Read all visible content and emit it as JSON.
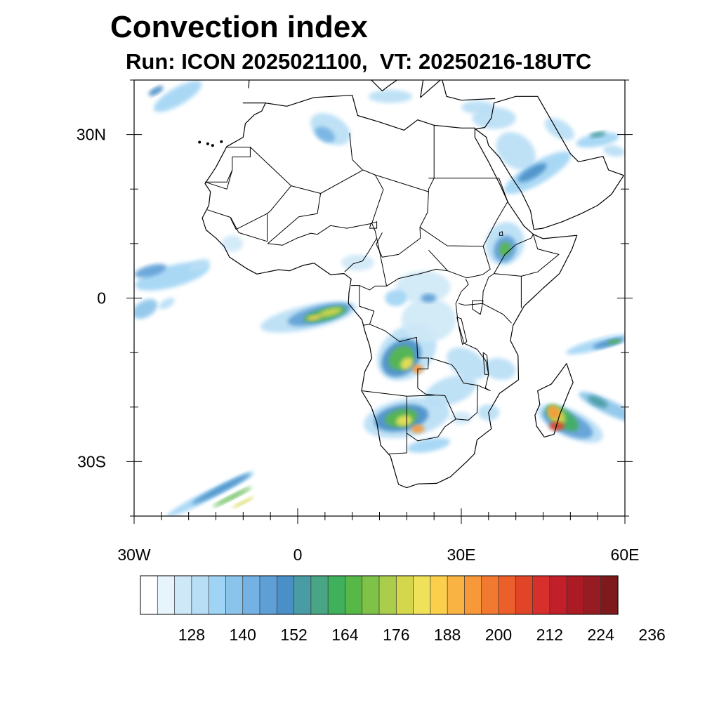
{
  "title": "Convection index",
  "subtitle": "Run: ICON 2025021100,  VT: 20250216-18UTC",
  "map": {
    "lon_range": [
      -30,
      60
    ],
    "lat_range": [
      -40,
      40
    ],
    "lon_ticks": [
      {
        "value": -30,
        "label": "30W"
      },
      {
        "value": 0,
        "label": "0"
      },
      {
        "value": 30,
        "label": "30E"
      },
      {
        "value": 60,
        "label": "60E"
      }
    ],
    "lat_ticks": [
      {
        "value": 30,
        "label": "30N"
      },
      {
        "value": 0,
        "label": "0"
      },
      {
        "value": -30,
        "label": "30S"
      }
    ],
    "minor_lon_step": 5,
    "minor_lat_step": 10,
    "coastline": [
      [
        -10.0,
        35.8
      ],
      [
        -6.0,
        35.8
      ],
      [
        -2.0,
        35.2
      ],
      [
        3.0,
        36.8
      ],
      [
        10.0,
        37.2
      ],
      [
        11.0,
        33.5
      ],
      [
        15.0,
        32.3
      ],
      [
        19.5,
        30.8
      ],
      [
        22.0,
        32.7
      ],
      [
        25.0,
        31.7
      ],
      [
        30.0,
        31.2
      ],
      [
        32.5,
        31.2
      ],
      [
        32.5,
        29.5
      ],
      [
        35.0,
        25.0
      ],
      [
        37.0,
        21.0
      ],
      [
        38.6,
        17.5
      ],
      [
        41.5,
        13.2
      ],
      [
        43.2,
        11.7
      ],
      [
        45.0,
        10.9
      ],
      [
        51.2,
        11.5
      ],
      [
        50.3,
        9.0
      ],
      [
        48.0,
        4.5
      ],
      [
        45.0,
        1.8
      ],
      [
        41.5,
        -1.5
      ],
      [
        39.5,
        -5.0
      ],
      [
        39.0,
        -7.8
      ],
      [
        40.4,
        -10.5
      ],
      [
        40.5,
        -15.0
      ],
      [
        37.0,
        -17.5
      ],
      [
        35.0,
        -21.0
      ],
      [
        35.5,
        -24.0
      ],
      [
        32.9,
        -26.0
      ],
      [
        32.4,
        -28.6
      ],
      [
        31.0,
        -30.0
      ],
      [
        28.0,
        -32.8
      ],
      [
        25.5,
        -34.0
      ],
      [
        22.0,
        -34.1
      ],
      [
        20.0,
        -34.8
      ],
      [
        18.5,
        -34.2
      ],
      [
        18.0,
        -32.5
      ],
      [
        17.0,
        -29.0
      ],
      [
        15.2,
        -27.0
      ],
      [
        14.5,
        -22.8
      ],
      [
        13.5,
        -20.0
      ],
      [
        11.7,
        -17.0
      ],
      [
        12.3,
        -13.5
      ],
      [
        13.6,
        -11.0
      ],
      [
        13.2,
        -8.8
      ],
      [
        12.3,
        -6.0
      ],
      [
        11.8,
        -4.0
      ],
      [
        9.3,
        -1.0
      ],
      [
        9.4,
        1.0
      ],
      [
        9.8,
        3.5
      ],
      [
        8.5,
        4.5
      ],
      [
        6.0,
        4.3
      ],
      [
        3.0,
        6.4
      ],
      [
        1.0,
        6.0
      ],
      [
        -1.5,
        5.0
      ],
      [
        -3.5,
        5.2
      ],
      [
        -7.5,
        4.4
      ],
      [
        -9.5,
        5.5
      ],
      [
        -12.5,
        7.5
      ],
      [
        -13.5,
        9.5
      ],
      [
        -15.0,
        11.0
      ],
      [
        -16.8,
        12.5
      ],
      [
        -17.5,
        14.7
      ],
      [
        -16.3,
        17.0
      ],
      [
        -16.0,
        19.5
      ],
      [
        -17.0,
        21.0
      ],
      [
        -15.0,
        24.0
      ],
      [
        -13.0,
        27.8
      ],
      [
        -10.0,
        29.5
      ],
      [
        -9.6,
        32.0
      ],
      [
        -8.0,
        33.6
      ],
      [
        -6.6,
        34.3
      ],
      [
        -5.9,
        35.8
      ]
    ],
    "madagascar": [
      [
        49.3,
        -12.0
      ],
      [
        50.5,
        -15.5
      ],
      [
        49.8,
        -17.0
      ],
      [
        48.0,
        -21.5
      ],
      [
        47.0,
        -25.0
      ],
      [
        45.2,
        -25.5
      ],
      [
        43.8,
        -23.5
      ],
      [
        43.5,
        -21.5
      ],
      [
        44.4,
        -19.5
      ],
      [
        44.0,
        -17.0
      ],
      [
        46.5,
        -15.8
      ],
      [
        48.0,
        -13.8
      ],
      [
        49.3,
        -12.0
      ]
    ],
    "arabia": [
      [
        32.6,
        31.0
      ],
      [
        34.3,
        31.3
      ],
      [
        35.5,
        33.0
      ],
      [
        36.0,
        35.8
      ],
      [
        40.0,
        37.0
      ],
      [
        44.0,
        37.0
      ],
      [
        48.0,
        30.0
      ],
      [
        50.0,
        26.5
      ],
      [
        51.5,
        25.0
      ],
      [
        56.0,
        26.0
      ],
      [
        57.0,
        23.5
      ],
      [
        59.8,
        22.5
      ],
      [
        57.5,
        19.0
      ],
      [
        55.0,
        17.0
      ],
      [
        52.0,
        15.5
      ],
      [
        48.5,
        14.0
      ],
      [
        45.0,
        12.8
      ],
      [
        43.3,
        12.6
      ],
      [
        42.7,
        16.0
      ],
      [
        41.0,
        19.5
      ],
      [
        39.0,
        22.5
      ],
      [
        37.0,
        25.8
      ],
      [
        35.0,
        28.0
      ],
      [
        34.6,
        29.5
      ],
      [
        32.6,
        31.0
      ]
    ],
    "europe": [
      [
        -9.0,
        38.5
      ],
      [
        -8.8,
        42.0
      ],
      [
        -7.5,
        44.0
      ],
      [
        -1.5,
        43.4
      ],
      [
        3.0,
        42.5
      ],
      [
        8.0,
        43.8
      ],
      [
        12.0,
        41.5
      ],
      [
        15.5,
        38.0
      ],
      [
        16.5,
        38.8
      ],
      [
        18.5,
        40.2
      ],
      [
        16.0,
        41.8
      ],
      [
        13.5,
        45.5
      ],
      [
        19.0,
        42.0
      ],
      [
        23.0,
        40.0
      ],
      [
        22.5,
        36.8
      ],
      [
        26.5,
        40.3
      ],
      [
        26.0,
        42.0
      ],
      [
        28.5,
        43.5
      ],
      [
        29.0,
        45.0
      ],
      [
        36.0,
        45.2
      ],
      [
        40.0,
        43.5
      ],
      [
        41.5,
        41.5
      ],
      [
        36.0,
        41.3
      ],
      [
        32.0,
        41.8
      ],
      [
        29.0,
        41.0
      ],
      [
        26.5,
        40.0
      ],
      [
        27.3,
        37.0
      ],
      [
        30.0,
        36.3
      ],
      [
        36.2,
        36.6
      ]
    ],
    "borders": [
      [
        [
          -8.7,
          27.7
        ],
        [
          -1.2,
          20.6
        ],
        [
          4.2,
          19.2
        ],
        [
          12.0,
          23.5
        ],
        [
          14.2,
          22.6
        ],
        [
          24.0,
          19.5
        ],
        [
          24.0,
          20.0
        ],
        [
          25.0,
          22.0
        ],
        [
          25.0,
          31.7
        ]
      ],
      [
        [
          9.5,
          30.3
        ],
        [
          10.0,
          25.4
        ],
        [
          11.9,
          23.5
        ]
      ],
      [
        [
          -13.0,
          27.7
        ],
        [
          -8.7,
          27.7
        ],
        [
          -8.7,
          25.9
        ],
        [
          -12.0,
          25.9
        ],
        [
          -12.0,
          23.5
        ],
        [
          -13.0,
          21.3
        ],
        [
          -17.0,
          21.3
        ]
      ],
      [
        [
          -5.6,
          15.5
        ],
        [
          -5.6,
          10.4
        ],
        [
          -10.8,
          12.0
        ],
        [
          -12.3,
          14.8
        ],
        [
          -16.6,
          16.2
        ]
      ],
      [
        [
          -1.2,
          20.6
        ],
        [
          -5.0,
          16.0
        ],
        [
          -5.6,
          15.5
        ],
        [
          -11.3,
          12.6
        ],
        [
          -12.3,
          14.6
        ]
      ],
      [
        [
          4.2,
          19.2
        ],
        [
          3.6,
          15.5
        ],
        [
          0.2,
          14.9
        ],
        [
          -5.5,
          10.0
        ],
        [
          -2.8,
          9.7
        ],
        [
          -0.1,
          11.0
        ],
        [
          2.4,
          11.9
        ],
        [
          3.6,
          11.7
        ],
        [
          6.0,
          13.3
        ],
        [
          9.0,
          12.8
        ],
        [
          13.6,
          13.7
        ],
        [
          15.7,
          19.9
        ],
        [
          14.2,
          22.6
        ]
      ],
      [
        [
          13.6,
          13.7
        ],
        [
          14.2,
          12.3
        ],
        [
          14.5,
          11.0
        ],
        [
          13.0,
          8.5
        ],
        [
          11.9,
          6.8
        ],
        [
          10.2,
          6.3
        ],
        [
          8.6,
          4.8
        ]
      ],
      [
        [
          15.5,
          12.0
        ],
        [
          14.4,
          9.9
        ],
        [
          15.5,
          7.5
        ],
        [
          18.5,
          8.0
        ],
        [
          22.5,
          11.0
        ],
        [
          22.4,
          13.0
        ],
        [
          23.8,
          15.7
        ],
        [
          24.0,
          19.5
        ]
      ],
      [
        [
          22.4,
          13.0
        ],
        [
          27.4,
          9.6
        ],
        [
          34.0,
          9.5
        ],
        [
          36.5,
          14.3
        ],
        [
          38.5,
          17.7
        ],
        [
          36.9,
          22.0
        ],
        [
          24.0,
          22.0
        ]
      ],
      [
        [
          24.0,
          8.8
        ],
        [
          27.5,
          5.0
        ],
        [
          31.0,
          3.7
        ],
        [
          33.9,
          4.3
        ],
        [
          35.3,
          5.3
        ],
        [
          34.0,
          9.5
        ]
      ],
      [
        [
          14.5,
          11.0
        ],
        [
          16.3,
          2.2
        ],
        [
          14.2,
          2.2
        ],
        [
          13.2,
          1.5
        ],
        [
          11.3,
          2.3
        ],
        [
          9.8,
          2.3
        ]
      ],
      [
        [
          16.3,
          2.2
        ],
        [
          18.5,
          3.6
        ],
        [
          22.5,
          4.5
        ],
        [
          25.4,
          5.3
        ],
        [
          27.5,
          5.0
        ]
      ],
      [
        [
          11.3,
          2.3
        ],
        [
          11.3,
          -1.5
        ],
        [
          14.0,
          -2.4
        ],
        [
          13.2,
          -4.8
        ],
        [
          12.0,
          -5.0
        ]
      ],
      [
        [
          13.2,
          -4.8
        ],
        [
          16.0,
          -6.0
        ],
        [
          18.7,
          -8.0
        ],
        [
          21.8,
          -7.2
        ],
        [
          22.0,
          -11.0
        ],
        [
          24.0,
          -11.0
        ],
        [
          23.9,
          -13.0
        ],
        [
          22.0,
          -13.0
        ],
        [
          22.0,
          -16.5
        ],
        [
          23.4,
          -17.6
        ],
        [
          25.3,
          -17.8
        ],
        [
          20.0,
          -18.0
        ],
        [
          11.7,
          -17.0
        ]
      ],
      [
        [
          29.4,
          -4.5
        ],
        [
          29.0,
          -1.0
        ],
        [
          30.0,
          1.2
        ],
        [
          31.3,
          2.5
        ],
        [
          30.8,
          3.5
        ]
      ],
      [
        [
          29.5,
          -1.0
        ],
        [
          30.7,
          -1.3
        ],
        [
          33.9,
          -1.0
        ],
        [
          34.0,
          1.2
        ],
        [
          35.0,
          3.8
        ],
        [
          36.0,
          4.5
        ],
        [
          41.0,
          4.0
        ],
        [
          41.0,
          -1.8
        ]
      ],
      [
        [
          33.9,
          -1.0
        ],
        [
          37.7,
          -3.0
        ],
        [
          39.2,
          -4.6
        ]
      ],
      [
        [
          29.4,
          -4.5
        ],
        [
          30.5,
          -8.3
        ],
        [
          32.9,
          -9.4
        ],
        [
          34.5,
          -11.5
        ],
        [
          35.0,
          -14.0
        ],
        [
          34.4,
          -16.5
        ],
        [
          35.3,
          -17.0
        ],
        [
          33.0,
          -16.0
        ],
        [
          30.4,
          -15.6
        ],
        [
          28.9,
          -13.0
        ],
        [
          28.2,
          -12.2
        ],
        [
          24.3,
          -11.0
        ]
      ],
      [
        [
          33.0,
          -16.0
        ],
        [
          32.9,
          -21.0
        ],
        [
          31.3,
          -22.4
        ],
        [
          29.0,
          -22.2
        ],
        [
          27.0,
          -17.9
        ],
        [
          25.3,
          -17.8
        ]
      ],
      [
        [
          20.0,
          -18.0
        ],
        [
          20.0,
          -22.0
        ],
        [
          20.0,
          -24.8
        ],
        [
          20.0,
          -28.4
        ],
        [
          16.5,
          -28.6
        ]
      ],
      [
        [
          20.0,
          -24.8
        ],
        [
          22.0,
          -26.2
        ],
        [
          25.7,
          -25.5
        ],
        [
          27.0,
          -23.6
        ],
        [
          29.0,
          -22.2
        ]
      ],
      [
        [
          36.0,
          4.5
        ],
        [
          38.0,
          8.0
        ],
        [
          40.0,
          9.8
        ],
        [
          42.8,
          11.0
        ],
        [
          43.2,
          11.7
        ]
      ],
      [
        [
          41.0,
          4.0
        ],
        [
          44.0,
          4.8
        ],
        [
          47.9,
          8.0
        ],
        [
          44.0,
          9.0
        ],
        [
          43.2,
          11.7
        ]
      ],
      [
        [
          -17.0,
          21.3
        ],
        [
          -13.0,
          20.0
        ],
        [
          -12.0,
          23.5
        ]
      ]
    ],
    "lakes": [
      [
        [
          32.0,
          -0.5
        ],
        [
          34.0,
          -0.5
        ],
        [
          33.5,
          -3.0
        ],
        [
          32.0,
          -2.0
        ],
        [
          32.0,
          -0.5
        ]
      ],
      [
        [
          29.2,
          -3.5
        ],
        [
          30.0,
          -3.8
        ],
        [
          31.0,
          -8.0
        ],
        [
          30.2,
          -8.5
        ],
        [
          29.2,
          -3.5
        ]
      ],
      [
        [
          34.0,
          -10.0
        ],
        [
          34.7,
          -10.5
        ],
        [
          35.0,
          -14.0
        ],
        [
          34.3,
          -14.0
        ],
        [
          34.0,
          -10.0
        ]
      ],
      [
        [
          37.0,
          11.5
        ],
        [
          37.6,
          11.5
        ],
        [
          37.5,
          12.2
        ],
        [
          37.0,
          12.0
        ],
        [
          37.0,
          11.5
        ]
      ],
      [
        [
          13.2,
          12.8
        ],
        [
          14.5,
          12.8
        ],
        [
          14.5,
          14.0
        ],
        [
          13.4,
          13.7
        ],
        [
          13.2,
          12.8
        ]
      ]
    ],
    "canary_islands": [
      [
        -18.0,
        28.6
      ],
      [
        -16.5,
        28.3
      ],
      [
        -15.6,
        28.0
      ],
      [
        -14.0,
        28.7
      ]
    ]
  },
  "colorbar": {
    "colors": [
      "#ffffff",
      "#e8f4fc",
      "#cfe8f7",
      "#b8def5",
      "#a0d4f4",
      "#8ac4ea",
      "#74b2e3",
      "#5e9fd6",
      "#4a8fc8",
      "#4a9ca4",
      "#48a684",
      "#3fb05c",
      "#57b848",
      "#7fc248",
      "#abcd4c",
      "#d4d64c",
      "#f0e15a",
      "#fbcf4c",
      "#f9b342",
      "#f7983a",
      "#f27a30",
      "#ec5e2a",
      "#e04528",
      "#d62f2c",
      "#c21f2a",
      "#ac1a24",
      "#961b22",
      "#7e1a1c"
    ],
    "labels": [
      "128",
      "140",
      "152",
      "164",
      "176",
      "188",
      "200",
      "212",
      "224",
      "236"
    ]
  },
  "legend": {
    "scale_min": 116,
    "scale_step": 4
  }
}
